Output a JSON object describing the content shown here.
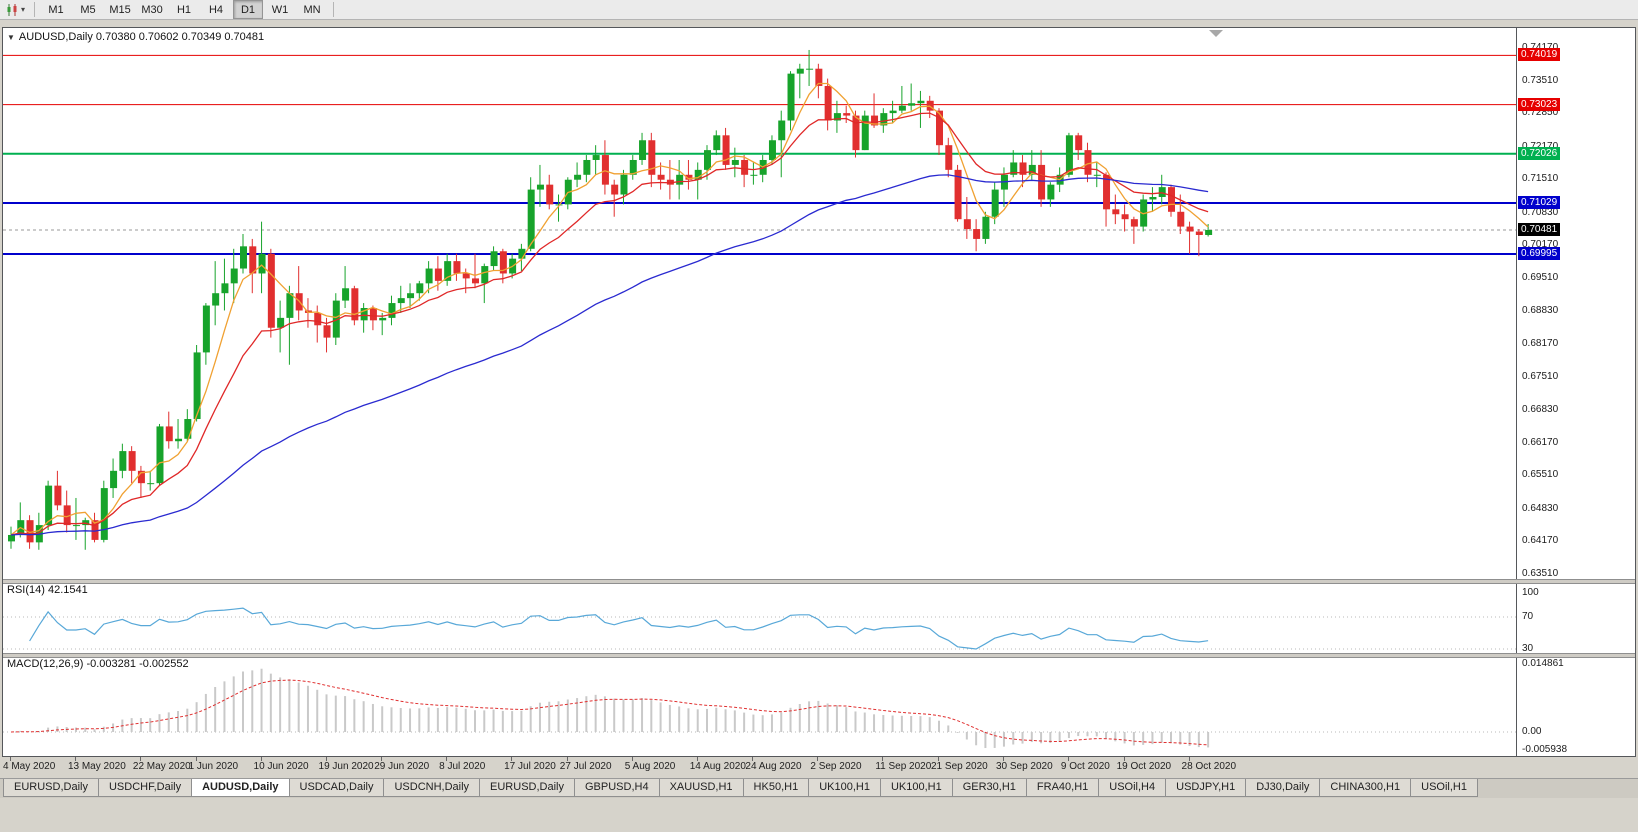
{
  "toolbar": {
    "chart_type_icon": "candlestick-chart-icon",
    "dropdown_caret": "▾",
    "timeframes": [
      "M1",
      "M5",
      "M15",
      "M30",
      "H1",
      "H4",
      "D1",
      "W1",
      "MN"
    ],
    "active_timeframe": "D1"
  },
  "chart_header": {
    "dropdown_glyph": "▼",
    "title": "AUDUSD,Daily  0.70380 0.70602 0.70349 0.70481"
  },
  "colors": {
    "candle_up": "#17a32b",
    "candle_down": "#e12f2f",
    "ma_fast": "#f0a132",
    "ma_mid": "#e02828",
    "ma_slow": "#2a2ad0",
    "rsi_line": "#58a8d8",
    "macd_bar": "#c9c9c9",
    "macd_signal": "#e03030",
    "current_price_badge": "#000000",
    "level_red": "#e60000",
    "level_green": "#00b050",
    "level_blue": "#0000cc"
  },
  "chart_data": {
    "type": "candlestick",
    "symbol": "AUDUSD",
    "timeframe": "Daily",
    "ohlc_display": {
      "open": "0.70380",
      "high": "0.70602",
      "low": "0.70349",
      "close": "0.70481"
    },
    "y_axis_labels": [
      "0.74170",
      "0.73510",
      "0.72850",
      "0.72170",
      "0.71510",
      "0.70830",
      "0.70170",
      "0.69510",
      "0.68830",
      "0.68170",
      "0.67510",
      "0.66830",
      "0.66170",
      "0.65510",
      "0.64830",
      "0.64170",
      "0.63510"
    ],
    "x_labels": [
      "4 May 2020",
      "13 May 2020",
      "22 May 2020",
      "1 Jun 2020",
      "10 Jun 2020",
      "19 Jun 2020",
      "29 Jun 2020",
      "8 Jul 2020",
      "17 Jul 2020",
      "27 Jul 2020",
      "5 Aug 2020",
      "14 Aug 2020",
      "24 Aug 2020",
      "2 Sep 2020",
      "11 Sep 2020",
      "21 Sep 2020",
      "30 Sep 2020",
      "9 Oct 2020",
      "19 Oct 2020",
      "28 Oct 2020"
    ],
    "x_label_indices": [
      0,
      7,
      14,
      20,
      27,
      34,
      40,
      47,
      54,
      60,
      67,
      74,
      80,
      87,
      94,
      100,
      107,
      114,
      120,
      127
    ],
    "h_lines": [
      {
        "value": 0.74019,
        "label": "0.74019",
        "color": "#e60000",
        "width": 1
      },
      {
        "value": 0.73023,
        "label": "0.73023",
        "color": "#e60000",
        "width": 1
      },
      {
        "value": 0.72026,
        "label": "0.72026",
        "color": "#00b050",
        "width": 2
      },
      {
        "value": 0.71029,
        "label": "0.71029",
        "color": "#0000cc",
        "width": 2
      },
      {
        "value": 0.69995,
        "label": "0.69995",
        "color": "#0000cc",
        "width": 2
      }
    ],
    "current_price": {
      "value": 0.70481,
      "label": "0.70481"
    },
    "moving_averages": [
      {
        "name": "ma-fast",
        "type": "sma",
        "period": 5,
        "color": "#f0a132"
      },
      {
        "name": "ma-mid",
        "type": "ema",
        "period": 13,
        "color": "#e02828"
      },
      {
        "name": "ma-slow",
        "type": "ema",
        "period": 55,
        "color": "#2a2ad0"
      }
    ],
    "indicators": {
      "rsi": {
        "label": "RSI(14) 42.1541",
        "period": 14,
        "current": 42.1541,
        "scale_labels": [
          "100",
          "70",
          "30"
        ],
        "levels": [
          70,
          30
        ]
      },
      "macd": {
        "label": "MACD(12,26,9) -0.003281 -0.002552",
        "fast": 12,
        "slow": 26,
        "signal": 9,
        "current_main": -0.003281,
        "current_signal": -0.002552,
        "scale_labels": [
          "0.014861",
          "0.00",
          "-0.005938"
        ]
      }
    },
    "candles": [
      [
        0.6417,
        0.6447,
        0.6402,
        0.643
      ],
      [
        0.643,
        0.6496,
        0.6425,
        0.646
      ],
      [
        0.646,
        0.647,
        0.6402,
        0.6415
      ],
      [
        0.6415,
        0.6475,
        0.64,
        0.645
      ],
      [
        0.645,
        0.654,
        0.644,
        0.653
      ],
      [
        0.653,
        0.656,
        0.648,
        0.649
      ],
      [
        0.649,
        0.652,
        0.6435,
        0.645
      ],
      [
        0.645,
        0.6505,
        0.642,
        0.645
      ],
      [
        0.645,
        0.6465,
        0.64,
        0.646
      ],
      [
        0.646,
        0.6475,
        0.6415,
        0.642
      ],
      [
        0.642,
        0.654,
        0.6415,
        0.6525
      ],
      [
        0.6525,
        0.6585,
        0.6505,
        0.656
      ],
      [
        0.656,
        0.6615,
        0.6545,
        0.66
      ],
      [
        0.66,
        0.661,
        0.6535,
        0.656
      ],
      [
        0.656,
        0.657,
        0.6505,
        0.6535
      ],
      [
        0.6535,
        0.656,
        0.652,
        0.6535
      ],
      [
        0.6535,
        0.6655,
        0.653,
        0.665
      ],
      [
        0.665,
        0.668,
        0.6605,
        0.662
      ],
      [
        0.662,
        0.6665,
        0.6605,
        0.6625
      ],
      [
        0.6625,
        0.6685,
        0.662,
        0.6665
      ],
      [
        0.6665,
        0.6815,
        0.666,
        0.68
      ],
      [
        0.68,
        0.69,
        0.6775,
        0.6895
      ],
      [
        0.6895,
        0.6985,
        0.6855,
        0.692
      ],
      [
        0.692,
        0.699,
        0.6885,
        0.694
      ],
      [
        0.694,
        0.701,
        0.69,
        0.697
      ],
      [
        0.697,
        0.704,
        0.696,
        0.7015
      ],
      [
        0.7015,
        0.703,
        0.692,
        0.696
      ],
      [
        0.696,
        0.7065,
        0.692,
        0.7
      ],
      [
        0.7,
        0.701,
        0.683,
        0.685
      ],
      [
        0.685,
        0.6905,
        0.68,
        0.687
      ],
      [
        0.687,
        0.6935,
        0.6775,
        0.692
      ],
      [
        0.692,
        0.6975,
        0.6865,
        0.6885
      ],
      [
        0.6885,
        0.691,
        0.685,
        0.688
      ],
      [
        0.688,
        0.6895,
        0.682,
        0.6855
      ],
      [
        0.6855,
        0.687,
        0.68,
        0.683
      ],
      [
        0.683,
        0.692,
        0.6815,
        0.6905
      ],
      [
        0.6905,
        0.6975,
        0.689,
        0.693
      ],
      [
        0.693,
        0.6935,
        0.6855,
        0.6865
      ],
      [
        0.6865,
        0.69,
        0.684,
        0.689
      ],
      [
        0.689,
        0.6895,
        0.6845,
        0.6865
      ],
      [
        0.6865,
        0.688,
        0.6835,
        0.687
      ],
      [
        0.687,
        0.6915,
        0.6855,
        0.69
      ],
      [
        0.69,
        0.6935,
        0.688,
        0.691
      ],
      [
        0.691,
        0.694,
        0.689,
        0.692
      ],
      [
        0.692,
        0.6945,
        0.6905,
        0.694
      ],
      [
        0.694,
        0.6985,
        0.692,
        0.697
      ],
      [
        0.697,
        0.6995,
        0.6925,
        0.6945
      ],
      [
        0.6945,
        0.7,
        0.6935,
        0.6985
      ],
      [
        0.6985,
        0.7,
        0.6945,
        0.696
      ],
      [
        0.696,
        0.697,
        0.692,
        0.695
      ],
      [
        0.695,
        0.7,
        0.693,
        0.694
      ],
      [
        0.694,
        0.698,
        0.69,
        0.6975
      ],
      [
        0.6975,
        0.7015,
        0.6965,
        0.7005
      ],
      [
        0.7005,
        0.701,
        0.694,
        0.696
      ],
      [
        0.696,
        0.7,
        0.695,
        0.699
      ],
      [
        0.699,
        0.702,
        0.6965,
        0.701
      ],
      [
        0.701,
        0.7155,
        0.7005,
        0.713
      ],
      [
        0.713,
        0.718,
        0.7095,
        0.714
      ],
      [
        0.714,
        0.716,
        0.709,
        0.71
      ],
      [
        0.71,
        0.712,
        0.7065,
        0.71
      ],
      [
        0.71,
        0.7155,
        0.709,
        0.715
      ],
      [
        0.715,
        0.7185,
        0.7135,
        0.716
      ],
      [
        0.716,
        0.72,
        0.7145,
        0.719
      ],
      [
        0.719,
        0.722,
        0.716,
        0.72
      ],
      [
        0.72,
        0.723,
        0.712,
        0.714
      ],
      [
        0.714,
        0.715,
        0.7075,
        0.712
      ],
      [
        0.712,
        0.717,
        0.71,
        0.716
      ],
      [
        0.716,
        0.72,
        0.715,
        0.719
      ],
      [
        0.719,
        0.7245,
        0.718,
        0.723
      ],
      [
        0.723,
        0.7245,
        0.7135,
        0.716
      ],
      [
        0.716,
        0.7185,
        0.713,
        0.715
      ],
      [
        0.715,
        0.719,
        0.711,
        0.714
      ],
      [
        0.714,
        0.719,
        0.711,
        0.716
      ],
      [
        0.716,
        0.719,
        0.713,
        0.715
      ],
      [
        0.715,
        0.7185,
        0.711,
        0.717
      ],
      [
        0.717,
        0.722,
        0.715,
        0.721
      ],
      [
        0.721,
        0.725,
        0.72,
        0.724
      ],
      [
        0.724,
        0.7255,
        0.717,
        0.718
      ],
      [
        0.718,
        0.7215,
        0.7155,
        0.719
      ],
      [
        0.719,
        0.72,
        0.7135,
        0.716
      ],
      [
        0.716,
        0.7185,
        0.714,
        0.716
      ],
      [
        0.716,
        0.72,
        0.7145,
        0.719
      ],
      [
        0.719,
        0.724,
        0.718,
        0.723
      ],
      [
        0.723,
        0.729,
        0.7155,
        0.727
      ],
      [
        0.727,
        0.737,
        0.725,
        0.7365
      ],
      [
        0.7365,
        0.7385,
        0.7315,
        0.7375
      ],
      [
        0.7375,
        0.7413,
        0.734,
        0.7375
      ],
      [
        0.7375,
        0.7385,
        0.7315,
        0.734
      ],
      [
        0.734,
        0.7355,
        0.725,
        0.727
      ],
      [
        0.727,
        0.731,
        0.7245,
        0.7285
      ],
      [
        0.7285,
        0.73,
        0.7265,
        0.728
      ],
      [
        0.728,
        0.729,
        0.7195,
        0.721
      ],
      [
        0.721,
        0.729,
        0.721,
        0.728
      ],
      [
        0.728,
        0.7325,
        0.7255,
        0.726
      ],
      [
        0.726,
        0.7295,
        0.7245,
        0.7285
      ],
      [
        0.7285,
        0.731,
        0.7265,
        0.729
      ],
      [
        0.729,
        0.734,
        0.7285,
        0.73
      ],
      [
        0.73,
        0.7345,
        0.729,
        0.7305
      ],
      [
        0.7305,
        0.733,
        0.7255,
        0.731
      ],
      [
        0.731,
        0.732,
        0.7275,
        0.729
      ],
      [
        0.729,
        0.7295,
        0.72,
        0.722
      ],
      [
        0.722,
        0.7235,
        0.7155,
        0.717
      ],
      [
        0.717,
        0.718,
        0.7065,
        0.707
      ],
      [
        0.707,
        0.7115,
        0.703,
        0.705
      ],
      [
        0.705,
        0.707,
        0.7005,
        0.703
      ],
      [
        0.703,
        0.7085,
        0.702,
        0.7075
      ],
      [
        0.7075,
        0.7145,
        0.706,
        0.713
      ],
      [
        0.713,
        0.7175,
        0.7095,
        0.716
      ],
      [
        0.716,
        0.721,
        0.7155,
        0.7185
      ],
      [
        0.7185,
        0.72,
        0.7135,
        0.716
      ],
      [
        0.716,
        0.721,
        0.715,
        0.718
      ],
      [
        0.718,
        0.721,
        0.7095,
        0.711
      ],
      [
        0.711,
        0.7145,
        0.7095,
        0.714
      ],
      [
        0.714,
        0.7175,
        0.7125,
        0.716
      ],
      [
        0.716,
        0.7245,
        0.7155,
        0.724
      ],
      [
        0.724,
        0.7245,
        0.719,
        0.721
      ],
      [
        0.721,
        0.7225,
        0.7145,
        0.716
      ],
      [
        0.716,
        0.7185,
        0.7135,
        0.716
      ],
      [
        0.716,
        0.7165,
        0.7055,
        0.709
      ],
      [
        0.709,
        0.712,
        0.706,
        0.708
      ],
      [
        0.708,
        0.71,
        0.7045,
        0.707
      ],
      [
        0.707,
        0.7075,
        0.702,
        0.7055
      ],
      [
        0.7055,
        0.712,
        0.7045,
        0.711
      ],
      [
        0.711,
        0.7135,
        0.7085,
        0.7115
      ],
      [
        0.7115,
        0.716,
        0.71,
        0.7135
      ],
      [
        0.7135,
        0.714,
        0.7075,
        0.7085
      ],
      [
        0.7085,
        0.712,
        0.704,
        0.7055
      ],
      [
        0.7055,
        0.7065,
        0.7,
        0.7045
      ],
      [
        0.7045,
        0.705,
        0.6995,
        0.7038
      ],
      [
        0.7038,
        0.70602,
        0.70349,
        0.70481
      ]
    ]
  },
  "tabs": {
    "items": [
      "EURUSD,Daily",
      "USDCHF,Daily",
      "AUDUSD,Daily",
      "USDCAD,Daily",
      "USDCNH,Daily",
      "EURUSD,Daily",
      "GBPUSD,H4",
      "XAUUSD,H1",
      "HK50,H1",
      "UK100,H1",
      "UK100,H1",
      "GER30,H1",
      "FRA40,H1",
      "USOil,H4",
      "USDJPY,H1",
      "DJ30,Daily",
      "CHINA300,H1",
      "USOil,H1"
    ],
    "active_index": 2
  }
}
